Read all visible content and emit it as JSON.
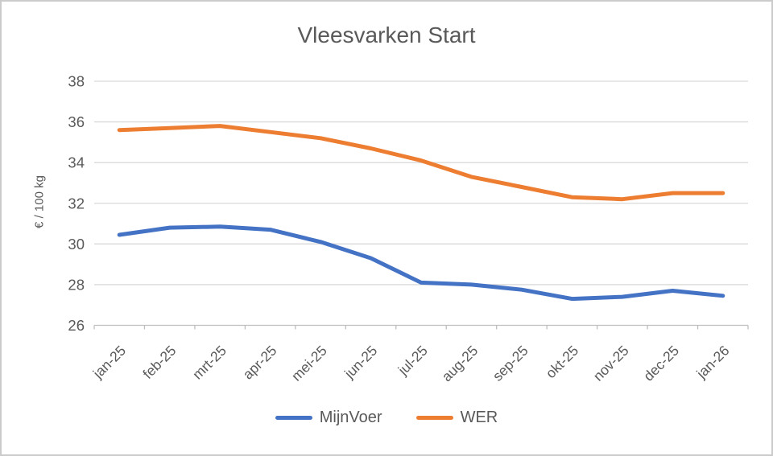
{
  "frame": {
    "title": "Vleesvarken Start"
  },
  "chart_data": {
    "type": "line",
    "title": "Vleesvarken Start",
    "xlabel": "",
    "ylabel": "€ / 100 kg",
    "ylim": [
      26,
      38
    ],
    "yticks": [
      26,
      28,
      30,
      32,
      34,
      36,
      38
    ],
    "grid": true,
    "legend_position": "bottom",
    "categories": [
      "jan-25",
      "feb-25",
      "mrt-25",
      "apr-25",
      "mei-25",
      "jun-25",
      "jul-25",
      "aug-25",
      "sep-25",
      "okt-25",
      "nov-25",
      "dec-25",
      "jan-26"
    ],
    "series": [
      {
        "name": "MijnVoer",
        "color": "#4472C4",
        "values": [
          30.45,
          30.8,
          30.85,
          30.7,
          30.1,
          29.3,
          28.1,
          28.0,
          27.75,
          27.3,
          27.4,
          27.7,
          27.45
        ]
      },
      {
        "name": "WER",
        "color": "#ED7D31",
        "values": [
          35.6,
          35.7,
          35.8,
          35.5,
          35.2,
          34.7,
          34.1,
          33.3,
          32.8,
          32.3,
          32.2,
          32.5,
          32.5
        ]
      }
    ],
    "style_colors": {
      "gridline": "#D9D9D9",
      "axis_line": "#BFBFBF",
      "tick_text": "#595959"
    }
  }
}
